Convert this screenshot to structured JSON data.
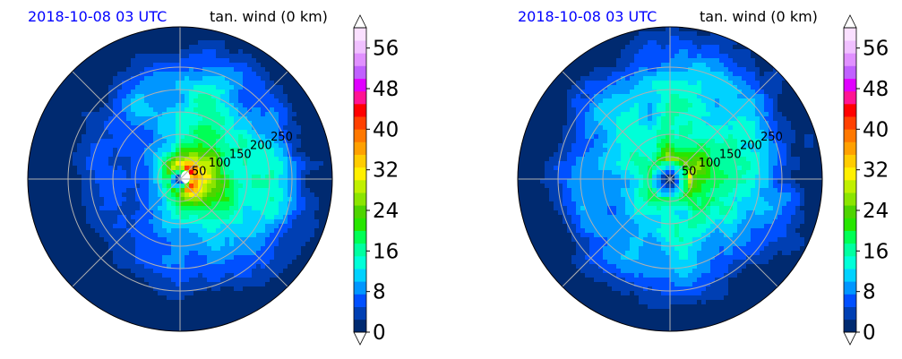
{
  "chart_data": [
    {
      "type": "heatmap",
      "projection": "polar",
      "title_left": "2018-10-08 03 UTC",
      "title_right": "tan. wind (0 km)",
      "radial_ticks": [
        50,
        100,
        150,
        200,
        250
      ],
      "rlim": [
        0,
        340
      ],
      "grid": true,
      "field_peak": 30,
      "colorbar": {
        "ticks": [
          0,
          8,
          16,
          24,
          32,
          40,
          48,
          56
        ],
        "range": [
          0,
          60
        ],
        "extend": "both"
      }
    },
    {
      "type": "heatmap",
      "projection": "polar",
      "title_left": "2018-10-08 03 UTC",
      "title_right": "tan. wind (0 km)",
      "radial_ticks": [
        50,
        100,
        150,
        200,
        250
      ],
      "rlim": [
        0,
        340
      ],
      "grid": true,
      "field_peak": 27,
      "colorbar": {
        "ticks": [
          0,
          8,
          16,
          24,
          32,
          40,
          48,
          56
        ],
        "range": [
          0,
          60
        ],
        "extend": "both"
      }
    }
  ],
  "colorscale": [
    "#002a70",
    "#003fb3",
    "#0050ff",
    "#0096ff",
    "#00d2ff",
    "#00ffd8",
    "#00ffa0",
    "#00ff55",
    "#27e600",
    "#4ed400",
    "#8be500",
    "#c0f000",
    "#fff000",
    "#ffcc00",
    "#ffa000",
    "#ff7800",
    "#ff4000",
    "#ff0000",
    "#ff1493",
    "#e000ff",
    "#c060ff",
    "#e090ff",
    "#f0c0ff",
    "#fae0ff",
    "#ffffff"
  ]
}
